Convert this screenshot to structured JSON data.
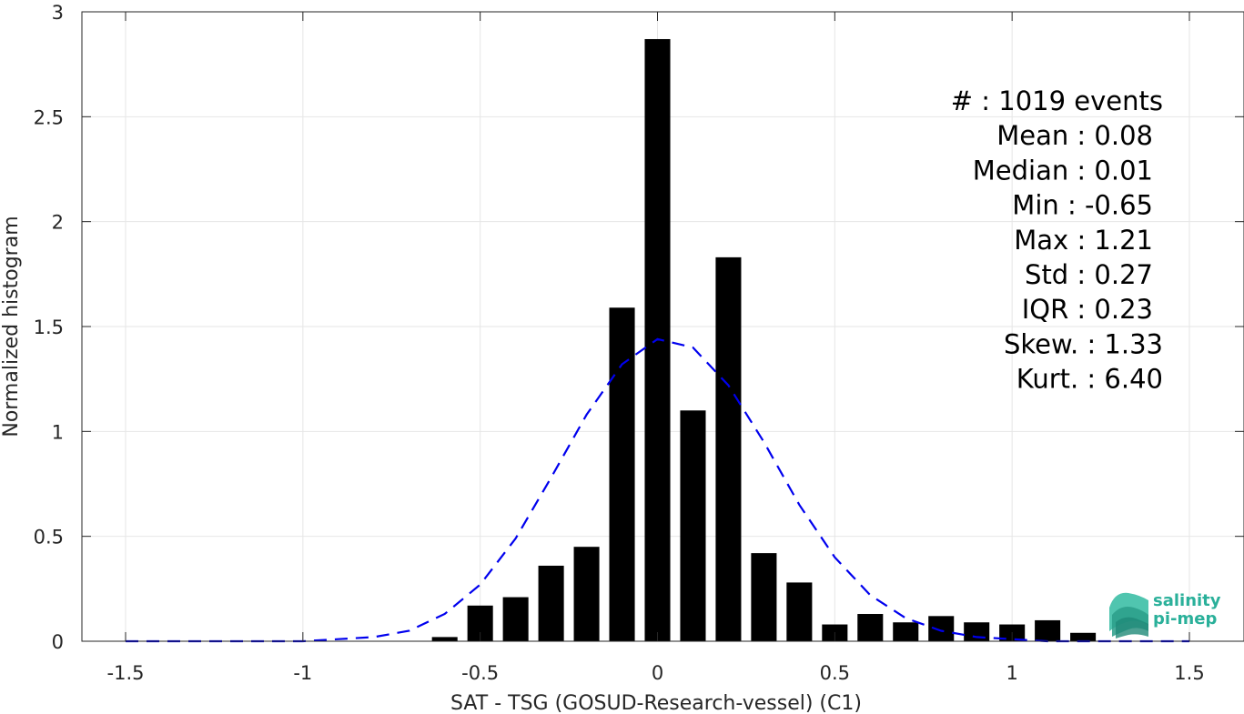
{
  "chart_data": {
    "type": "bar",
    "xlabel": "SAT - TSG (GOSUD-Research-vessel) (C1)",
    "ylabel": "Normalized histogram",
    "xlim": [
      -1.5,
      1.5
    ],
    "ylim": [
      0,
      3
    ],
    "xticks": [
      -1.5,
      -1,
      -0.5,
      0,
      0.5,
      1,
      1.5
    ],
    "xtick_labels": [
      "-1.5",
      "-1",
      "-0.5",
      "0",
      "0.5",
      "1",
      "1.5"
    ],
    "yticks": [
      0,
      0.5,
      1,
      1.5,
      2,
      2.5,
      3
    ],
    "ytick_labels": [
      "0",
      "0.5",
      "1",
      "1.5",
      "2",
      "2.5",
      "3"
    ],
    "grid": true,
    "bar_color": "#000000",
    "fit_color": "#0000ee",
    "histogram": {
      "x": [
        -0.6,
        -0.5,
        -0.4,
        -0.3,
        -0.2,
        -0.1,
        0.0,
        0.1,
        0.2,
        0.3,
        0.4,
        0.5,
        0.6,
        0.7,
        0.8,
        0.9,
        1.0,
        1.1,
        1.2
      ],
      "values": [
        0.02,
        0.17,
        0.21,
        0.36,
        0.45,
        1.59,
        2.87,
        1.1,
        1.83,
        0.42,
        0.28,
        0.08,
        0.13,
        0.09,
        0.12,
        0.09,
        0.08,
        0.1,
        0.04
      ]
    },
    "fit": {
      "style": "dashed",
      "x": [
        -1.5,
        -1.4,
        -1.3,
        -1.2,
        -1.1,
        -1.0,
        -0.9,
        -0.8,
        -0.7,
        -0.6,
        -0.5,
        -0.4,
        -0.3,
        -0.2,
        -0.1,
        0.0,
        0.1,
        0.2,
        0.3,
        0.4,
        0.5,
        0.6,
        0.7,
        0.8,
        0.9,
        1.0,
        1.1,
        1.2,
        1.3,
        1.4,
        1.5
      ],
      "values": [
        0.0,
        0.0,
        0.0,
        0.0,
        0.0,
        0.0,
        0.01,
        0.02,
        0.05,
        0.13,
        0.27,
        0.49,
        0.78,
        1.08,
        1.32,
        1.44,
        1.4,
        1.22,
        0.95,
        0.65,
        0.4,
        0.22,
        0.11,
        0.05,
        0.02,
        0.01,
        0.0,
        0.0,
        0.0,
        0.0,
        0.0
      ]
    },
    "stats_lines": [
      "#  : 1019 events",
      "Mean : 0.08",
      "Median : 0.01",
      "Min : -0.65",
      "Max : 1.21",
      "Std : 0.27",
      "IQR : 0.23",
      "Skew. : 1.33",
      "Kurt. : 6.40"
    ]
  },
  "logo": {
    "line1": "salinity",
    "line2": "pi-mep",
    "color": "#2ab09a"
  }
}
